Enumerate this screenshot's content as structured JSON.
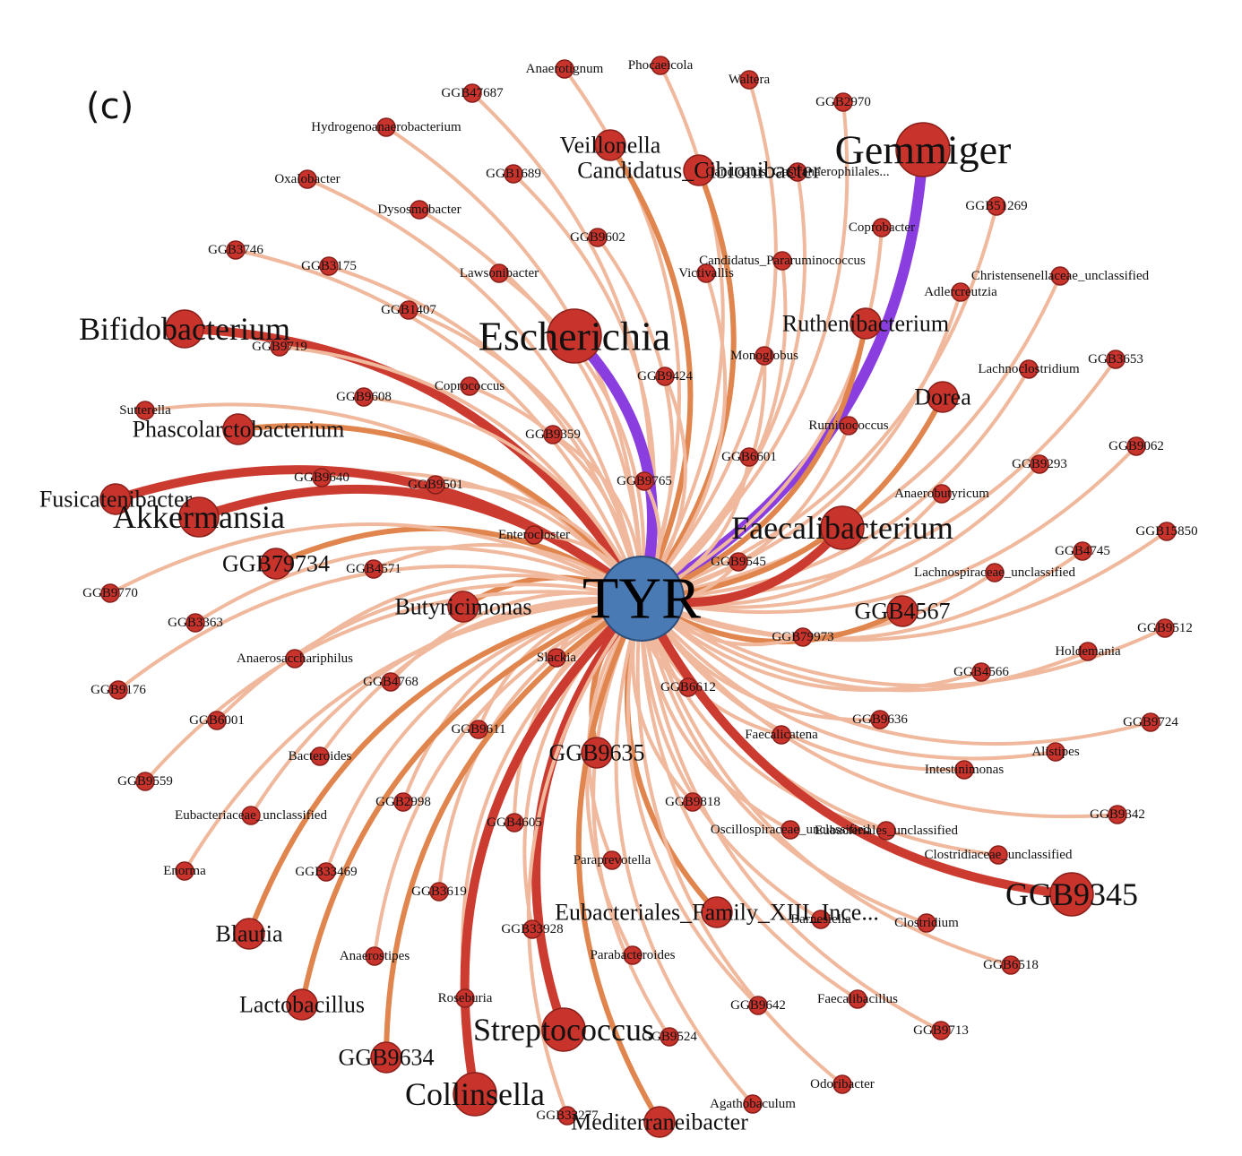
{
  "panel_label": "(c)",
  "hub": {
    "label": "TYR",
    "color": "#4a7ab3"
  },
  "colors": {
    "node_fill": "#c8332c",
    "node_stroke": "#8a1f1a",
    "edge_light": "#f0b89c",
    "edge_mid": "#e0854e",
    "edge_strong": "#cc3b30",
    "edge_purple": "#8a3ee0"
  },
  "nodes": [
    {
      "id": "anaerotignum",
      "label": "Anaerotignum",
      "size": "small",
      "weight": "light"
    },
    {
      "id": "phocaeicola",
      "label": "Phocaeicola",
      "size": "small",
      "weight": "light"
    },
    {
      "id": "waltera",
      "label": "Waltera",
      "size": "small",
      "weight": "light"
    },
    {
      "id": "ggb47687",
      "label": "GGB47687",
      "size": "small",
      "weight": "light"
    },
    {
      "id": "ggb2970",
      "label": "GGB2970",
      "size": "small",
      "weight": "light"
    },
    {
      "id": "hydrogeno",
      "label": "Hydrogenoanaerobacterium",
      "size": "small",
      "weight": "light"
    },
    {
      "id": "veillonella",
      "label": "Veillonella",
      "size": "medium",
      "weight": "mid"
    },
    {
      "id": "gemmiger",
      "label": "Gemmiger",
      "size": "large",
      "weight": "purple"
    },
    {
      "id": "candidatus_c",
      "label": "Candidatus_Cibionibacter",
      "size": "medium",
      "weight": "mid"
    },
    {
      "id": "candidatus_g",
      "label": "Candidatus_Gastranaerophilales...",
      "size": "small",
      "weight": "light"
    },
    {
      "id": "oxalobacter",
      "label": "Oxalobacter",
      "size": "small",
      "weight": "light"
    },
    {
      "id": "ggb1689",
      "label": "GGB1689",
      "size": "small",
      "weight": "light"
    },
    {
      "id": "dysosmobacter",
      "label": "Dysosmobacter",
      "size": "small",
      "weight": "light"
    },
    {
      "id": "ggb51269",
      "label": "GGB51269",
      "size": "small",
      "weight": "light"
    },
    {
      "id": "coprobacter",
      "label": "Coprobacter",
      "size": "small",
      "weight": "light"
    },
    {
      "id": "ggb9602",
      "label": "GGB9602",
      "size": "small",
      "weight": "light"
    },
    {
      "id": "ggb3746",
      "label": "GGB3746",
      "size": "small",
      "weight": "light"
    },
    {
      "id": "candidatus_p",
      "label": "Candidatus_Pararuminococcus",
      "size": "small",
      "weight": "light"
    },
    {
      "id": "ggb3175",
      "label": "GGB3175",
      "size": "small",
      "weight": "light"
    },
    {
      "id": "lawsonibacter",
      "label": "Lawsonibacter",
      "size": "small",
      "weight": "light"
    },
    {
      "id": "victivallis",
      "label": "Victivallis",
      "size": "small",
      "weight": "light"
    },
    {
      "id": "christensen",
      "label": "Christensenellaceae_unclassified",
      "size": "small",
      "weight": "light"
    },
    {
      "id": "adlercreutzia",
      "label": "Adlercreutzia",
      "size": "small",
      "weight": "light"
    },
    {
      "id": "ggb1407",
      "label": "GGB1407",
      "size": "small",
      "weight": "light"
    },
    {
      "id": "bifidobacterium",
      "label": "Bifidobacterium",
      "size": "large",
      "weight": "strong"
    },
    {
      "id": "escherichia",
      "label": "Escherichia",
      "size": "large",
      "weight": "purple"
    },
    {
      "id": "ruthenibacterium",
      "label": "Ruthenibacterium",
      "size": "medium",
      "weight": "mid"
    },
    {
      "id": "ggb9719",
      "label": "GGB9719",
      "size": "small",
      "weight": "light"
    },
    {
      "id": "monoglobus",
      "label": "Monoglobus",
      "size": "small",
      "weight": "light"
    },
    {
      "id": "ggb3653",
      "label": "GGB3653",
      "size": "small",
      "weight": "light"
    },
    {
      "id": "lachnoclostridium",
      "label": "Lachnoclostridium",
      "size": "small",
      "weight": "light"
    },
    {
      "id": "ggb9424",
      "label": "GGB9424",
      "size": "small",
      "weight": "light"
    },
    {
      "id": "ggb9608",
      "label": "GGB9608",
      "size": "small",
      "weight": "light"
    },
    {
      "id": "coprococcus",
      "label": "Coprococcus",
      "size": "small",
      "weight": "light"
    },
    {
      "id": "sutterella",
      "label": "Sutterella",
      "size": "small",
      "weight": "light"
    },
    {
      "id": "dorea",
      "label": "Dorea",
      "size": "medium",
      "weight": "mid"
    },
    {
      "id": "phascolarcto",
      "label": "Phascolarctobacterium",
      "size": "medium",
      "weight": "mid"
    },
    {
      "id": "ruminococcus",
      "label": "Ruminococcus",
      "size": "small",
      "weight": "light"
    },
    {
      "id": "ggb9359",
      "label": "GGB9359",
      "size": "small",
      "weight": "light"
    },
    {
      "id": "ggb9062",
      "label": "GGB9062",
      "size": "small",
      "weight": "light"
    },
    {
      "id": "ggb6601",
      "label": "GGB6601",
      "size": "small",
      "weight": "light"
    },
    {
      "id": "ggb9293",
      "label": "GGB9293",
      "size": "small",
      "weight": "light"
    },
    {
      "id": "ggb9640",
      "label": "GGB9640",
      "size": "small",
      "weight": "light"
    },
    {
      "id": "ggb9501",
      "label": "GGB9501",
      "size": "small",
      "weight": "light"
    },
    {
      "id": "ggb9765",
      "label": "GGB9765",
      "size": "small",
      "weight": "light"
    },
    {
      "id": "fusicatenibacter",
      "label": "Fusicatenibacter",
      "size": "medium",
      "weight": "strong"
    },
    {
      "id": "anaerobutyricum",
      "label": "Anaerobutyricum",
      "size": "small",
      "weight": "light"
    },
    {
      "id": "akkermansia",
      "label": "Akkermansia",
      "size": "large",
      "weight": "strong"
    },
    {
      "id": "faecalibacterium",
      "label": "Faecalibacterium",
      "size": "large",
      "weight": "strong"
    },
    {
      "id": "ggb15850",
      "label": "GGB15850",
      "size": "small",
      "weight": "light"
    },
    {
      "id": "enterocloster",
      "label": "Enterocloster",
      "size": "small",
      "weight": "light"
    },
    {
      "id": "ggb79734",
      "label": "GGB79734",
      "size": "medium",
      "weight": "mid"
    },
    {
      "id": "ggb4745",
      "label": "GGB4745",
      "size": "small",
      "weight": "light"
    },
    {
      "id": "ggb4571",
      "label": "GGB4571",
      "size": "small",
      "weight": "light"
    },
    {
      "id": "ggb9545",
      "label": "GGB9545",
      "size": "small",
      "weight": "light"
    },
    {
      "id": "lachnospiraceae",
      "label": "Lachnospiraceae_unclassified",
      "size": "small",
      "weight": "light"
    },
    {
      "id": "ggb9770",
      "label": "GGB9770",
      "size": "small",
      "weight": "light"
    },
    {
      "id": "butyricimonas",
      "label": "Butyricimonas",
      "size": "medium",
      "weight": "mid"
    },
    {
      "id": "ggb4567",
      "label": "GGB4567",
      "size": "medium",
      "weight": "mid"
    },
    {
      "id": "ggb9512",
      "label": "GGB9512",
      "size": "small",
      "weight": "light"
    },
    {
      "id": "ggb3363",
      "label": "GGB3363",
      "size": "small",
      "weight": "light"
    },
    {
      "id": "ggb79973",
      "label": "GGB79973",
      "size": "small",
      "weight": "light"
    },
    {
      "id": "holdemania",
      "label": "Holdemania",
      "size": "small",
      "weight": "light"
    },
    {
      "id": "anaerosacchari",
      "label": "Anaerosacchariphilus",
      "size": "small",
      "weight": "light"
    },
    {
      "id": "slackia",
      "label": "Slackia",
      "size": "small",
      "weight": "light"
    },
    {
      "id": "ggb4566",
      "label": "GGB4566",
      "size": "small",
      "weight": "light"
    },
    {
      "id": "ggb4768",
      "label": "GGB4768",
      "size": "small",
      "weight": "light"
    },
    {
      "id": "ggb6612",
      "label": "GGB6612",
      "size": "small",
      "weight": "light"
    },
    {
      "id": "ggb9176",
      "label": "GGB9176",
      "size": "small",
      "weight": "light"
    },
    {
      "id": "ggb9724",
      "label": "GGB9724",
      "size": "small",
      "weight": "light"
    },
    {
      "id": "ggb6001",
      "label": "GGB6001",
      "size": "small",
      "weight": "light"
    },
    {
      "id": "ggb9636",
      "label": "GGB9636",
      "size": "small",
      "weight": "light"
    },
    {
      "id": "ggb9611",
      "label": "GGB9611",
      "size": "small",
      "weight": "light"
    },
    {
      "id": "faecalicatena",
      "label": "Faecalicatena",
      "size": "small",
      "weight": "light"
    },
    {
      "id": "alistipes",
      "label": "Alistipes",
      "size": "small",
      "weight": "light"
    },
    {
      "id": "bacteroides",
      "label": "Bacteroides",
      "size": "small",
      "weight": "light"
    },
    {
      "id": "ggb9635",
      "label": "GGB9635",
      "size": "medium",
      "weight": "mid"
    },
    {
      "id": "intestinimonas",
      "label": "Intestinimonas",
      "size": "small",
      "weight": "light"
    },
    {
      "id": "ggb9559",
      "label": "GGB9559",
      "size": "small",
      "weight": "light"
    },
    {
      "id": "ggb9818",
      "label": "GGB9818",
      "size": "small",
      "weight": "light"
    },
    {
      "id": "ggb2998",
      "label": "GGB2998",
      "size": "small",
      "weight": "light"
    },
    {
      "id": "ggb9342",
      "label": "GGB9342",
      "size": "small",
      "weight": "light"
    },
    {
      "id": "eubacteriaceae",
      "label": "Eubacteriaceae_unclassified",
      "size": "small",
      "weight": "light"
    },
    {
      "id": "ggb4605",
      "label": "GGB4605",
      "size": "small",
      "weight": "light"
    },
    {
      "id": "oscillospiraceae",
      "label": "Oscillospiraceae_unclassified",
      "size": "small",
      "weight": "light"
    },
    {
      "id": "eubacteriales_u",
      "label": "Eubacteriales_unclassified",
      "size": "small",
      "weight": "light"
    },
    {
      "id": "clostridiaceae",
      "label": "Clostridiaceae_unclassified",
      "size": "small",
      "weight": "light"
    },
    {
      "id": "enorma",
      "label": "Enorma",
      "size": "small",
      "weight": "light"
    },
    {
      "id": "ggb33469",
      "label": "GGB33469",
      "size": "small",
      "weight": "light"
    },
    {
      "id": "paraprevotella",
      "label": "Paraprevotella",
      "size": "small",
      "weight": "light"
    },
    {
      "id": "ggb9345",
      "label": "GGB9345",
      "size": "large",
      "weight": "strong"
    },
    {
      "id": "ggb3619",
      "label": "GGB3619",
      "size": "small",
      "weight": "light"
    },
    {
      "id": "eubacteriales_f",
      "label": "Eubacteriales_Family_XIII_Ince...",
      "size": "medium",
      "weight": "mid"
    },
    {
      "id": "barnesiella",
      "label": "Barnesiella",
      "size": "small",
      "weight": "light"
    },
    {
      "id": "clostridium",
      "label": "Clostridium",
      "size": "small",
      "weight": "light"
    },
    {
      "id": "blautia",
      "label": "Blautia",
      "size": "medium",
      "weight": "mid"
    },
    {
      "id": "ggb33928",
      "label": "GGB33928",
      "size": "small",
      "weight": "light"
    },
    {
      "id": "anaerostipes",
      "label": "Anaerostipes",
      "size": "small",
      "weight": "light"
    },
    {
      "id": "parabacteroides",
      "label": "Parabacteroides",
      "size": "small",
      "weight": "light"
    },
    {
      "id": "ggb6518",
      "label": "GGB6518",
      "size": "small",
      "weight": "light"
    },
    {
      "id": "lactobacillus",
      "label": "Lactobacillus",
      "size": "medium",
      "weight": "mid"
    },
    {
      "id": "roseburia",
      "label": "Roseburia",
      "size": "small",
      "weight": "light"
    },
    {
      "id": "faecalibacillus",
      "label": "Faecalibacillus",
      "size": "small",
      "weight": "light"
    },
    {
      "id": "ggb9642",
      "label": "GGB9642",
      "size": "small",
      "weight": "light"
    },
    {
      "id": "streptococcus",
      "label": "Streptococcus",
      "size": "large",
      "weight": "strong"
    },
    {
      "id": "ggb9713",
      "label": "GGB9713",
      "size": "small",
      "weight": "light"
    },
    {
      "id": "ggb9524",
      "label": "GGB9524",
      "size": "small",
      "weight": "light"
    },
    {
      "id": "ggb9634",
      "label": "GGB9634",
      "size": "medium",
      "weight": "mid"
    },
    {
      "id": "odoribacter",
      "label": "Odoribacter",
      "size": "small",
      "weight": "light"
    },
    {
      "id": "collinsella",
      "label": "Collinsella",
      "size": "large",
      "weight": "strong"
    },
    {
      "id": "agathobaculum",
      "label": "Agathobaculum",
      "size": "small",
      "weight": "light"
    },
    {
      "id": "ggb33277",
      "label": "GGB33277",
      "size": "small",
      "weight": "light"
    },
    {
      "id": "mediterraneibacter",
      "label": "Mediterraneibacter",
      "size": "medium",
      "weight": "mid"
    }
  ]
}
